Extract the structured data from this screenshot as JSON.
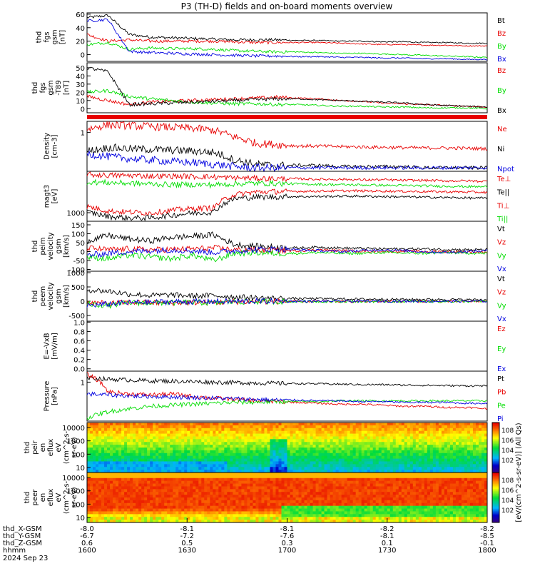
{
  "title": "P3 (TH-D) fields and on-board moments overview",
  "colors": {
    "black": "#000000",
    "red": "#e80000",
    "green": "#00dd00",
    "blue": "#0000e0"
  },
  "chart_data": [
    {
      "type": "line",
      "id": "fgs",
      "ylabel": [
        "thd",
        "fgs",
        "gsm",
        "[nT]"
      ],
      "ylim": [
        -10,
        62
      ],
      "yticks": [
        "60",
        "40",
        "20",
        "0"
      ],
      "series": [
        {
          "name": "Bt",
          "color": "black",
          "values": [
            55,
            58,
            30,
            26,
            25,
            24,
            23,
            22,
            22,
            22,
            21,
            21,
            20,
            20,
            19,
            19,
            18,
            18,
            17,
            17
          ]
        },
        {
          "name": "Bz",
          "color": "red",
          "values": [
            30,
            20,
            22,
            20,
            20,
            20,
            20,
            19,
            18,
            18,
            18,
            18,
            17,
            16,
            15,
            15,
            14,
            14,
            13,
            13
          ]
        },
        {
          "name": "By",
          "color": "green",
          "values": [
            15,
            18,
            8,
            10,
            9,
            9,
            8,
            6,
            5,
            4,
            4,
            3,
            2,
            2,
            1,
            0,
            -1,
            -2,
            -3,
            -4
          ]
        },
        {
          "name": "Bx",
          "color": "blue",
          "values": [
            50,
            52,
            5,
            3,
            2,
            1,
            0,
            -1,
            -2,
            -2,
            -3,
            -3,
            -4,
            -4,
            -5,
            -5,
            -6,
            -6,
            -7,
            -7
          ]
        }
      ]
    },
    {
      "type": "line",
      "id": "fgs-t89",
      "ylabel": [
        "thd",
        "fgs",
        "gsm",
        "-T89",
        "[nT]"
      ],
      "ylim": [
        -5,
        56
      ],
      "yticks": [
        "50",
        "40",
        "30",
        "20",
        "10",
        "0"
      ],
      "series": [
        {
          "name": "Bz",
          "color": "red",
          "values": [
            15,
            10,
            5,
            8,
            9,
            10,
            11,
            12,
            13,
            14,
            13,
            12,
            10,
            9,
            7,
            6,
            5,
            4,
            3,
            2
          ]
        },
        {
          "name": "By",
          "color": "green",
          "values": [
            20,
            22,
            15,
            12,
            10,
            8,
            7,
            6,
            6,
            5,
            5,
            4,
            3,
            3,
            2,
            2,
            1,
            1,
            1,
            0
          ]
        },
        {
          "name": "Bx",
          "color": "black",
          "values": [
            50,
            45,
            5,
            6,
            7,
            8,
            9,
            10,
            11,
            12,
            12,
            11,
            10,
            9,
            8,
            7,
            5,
            4,
            3,
            2
          ]
        }
      ]
    },
    {
      "type": "line",
      "id": "density",
      "ylabel": [
        "Density",
        "[cm-3]"
      ],
      "yscale": "log",
      "yticks": [
        "1"
      ],
      "series": [
        {
          "name": "Ne",
          "color": "red",
          "values": [
            1.5,
            2.0,
            1.9,
            1.8,
            1.7,
            1.6,
            1.4,
            0.9,
            0.6,
            0.55,
            0.5,
            0.5,
            0.48,
            0.47,
            0.46,
            0.45,
            0.44,
            0.44,
            0.43,
            0.42
          ]
        },
        {
          "name": "Ni",
          "color": "black",
          "values": [
            0.35,
            0.45,
            0.42,
            0.4,
            0.38,
            0.36,
            0.33,
            0.2,
            0.15,
            0.14,
            0.14,
            0.14,
            0.13,
            0.13,
            0.13,
            0.13,
            0.12,
            0.12,
            0.12,
            0.12
          ]
        },
        {
          "name": "Npot",
          "color": "blue",
          "values": [
            0.3,
            0.25,
            0.22,
            0.2,
            0.18,
            0.17,
            0.15,
            0.13,
            0.12,
            0.12,
            0.12,
            0.12,
            0.12,
            0.12,
            0.12,
            0.12,
            0.12,
            0.12,
            0.12,
            0.12
          ]
        }
      ]
    },
    {
      "type": "line",
      "id": "temperature",
      "ylabel": [
        "magt3",
        "[eV]"
      ],
      "yscale": "log",
      "yticks": [
        "1000"
      ],
      "series": [
        {
          "name": "Te⊥",
          "color": "red",
          "values": [
            2200,
            1600,
            1500,
            1400,
            1700,
            1900,
            2000,
            5000,
            6000,
            6200,
            6300,
            6400,
            6500,
            6500,
            6400,
            6300,
            6200,
            6100,
            6000,
            5900
          ]
        },
        {
          "name": "Te||",
          "color": "black",
          "values": [
            1500,
            1100,
            1000,
            1000,
            1200,
            1400,
            1500,
            3800,
            4200,
            4300,
            4400,
            4400,
            4500,
            4500,
            4400,
            4300,
            4200,
            4100,
            4000,
            3900
          ]
        },
        {
          "name": "Ti⊥",
          "color": "red",
          "values": [
            20000,
            19000,
            19000,
            18000,
            18000,
            17500,
            17000,
            16000,
            15500,
            15000,
            15000,
            14500,
            14500,
            14000,
            14000,
            13500,
            13500,
            13000,
            13000,
            12500
          ]
        },
        {
          "name": "Ti||",
          "color": "green",
          "values": [
            12000,
            11500,
            11000,
            10500,
            10000,
            10000,
            9800,
            10500,
            11000,
            10800,
            10500,
            10200,
            10000,
            9800,
            9600,
            9400,
            9200,
            9000,
            8800,
            8600
          ]
        }
      ]
    },
    {
      "type": "line",
      "id": "peim-velocity",
      "ylabel": [
        "thd",
        "peim",
        "velocity",
        "gsm",
        "[km/s]"
      ],
      "ylim": [
        -110,
        170
      ],
      "yticks": [
        "150",
        "100",
        "50",
        "0",
        "-50",
        "-100"
      ],
      "series": [
        {
          "name": "Vt",
          "color": "black",
          "values": [
            60,
            90,
            70,
            60,
            80,
            85,
            95,
            40,
            30,
            25,
            20,
            25,
            20,
            18,
            15,
            15,
            15,
            12,
            10,
            10
          ]
        },
        {
          "name": "Vz",
          "color": "red",
          "values": [
            20,
            10,
            15,
            10,
            12,
            15,
            20,
            10,
            8,
            5,
            5,
            10,
            5,
            3,
            2,
            2,
            0,
            0,
            -2,
            -2
          ]
        },
        {
          "name": "Vy",
          "color": "green",
          "values": [
            -30,
            -40,
            -20,
            -30,
            -40,
            -20,
            -50,
            -10,
            -5,
            -10,
            -10,
            -5,
            -10,
            -10,
            -5,
            -8,
            -10,
            -5,
            -8,
            -10
          ]
        },
        {
          "name": "Vx",
          "color": "blue",
          "values": [
            -20,
            -10,
            0,
            5,
            10,
            5,
            -5,
            5,
            10,
            15,
            10,
            5,
            0,
            5,
            10,
            5,
            0,
            -5,
            0,
            5
          ]
        }
      ]
    },
    {
      "type": "line",
      "id": "peem-velocity",
      "ylabel": [
        "thd",
        "peem",
        "velocity",
        "gsm",
        "[km/s]"
      ],
      "ylim": [
        -700,
        1050
      ],
      "yticks": [
        "1000",
        "500",
        "0",
        "-500"
      ],
      "series": [
        {
          "name": "Vt",
          "color": "black",
          "values": [
            400,
            350,
            250,
            200,
            220,
            180,
            200,
            150,
            120,
            100,
            90,
            90,
            80,
            70,
            70,
            60,
            60,
            60,
            50,
            50
          ]
        },
        {
          "name": "Vz",
          "color": "red",
          "values": [
            -50,
            -80,
            -40,
            -50,
            -60,
            -40,
            -50,
            -20,
            -20,
            -10,
            -10,
            -10,
            -10,
            -5,
            -5,
            -5,
            -5,
            -5,
            -5,
            -5
          ]
        },
        {
          "name": "Vy",
          "color": "green",
          "values": [
            -100,
            -150,
            -50,
            -60,
            -50,
            -40,
            -60,
            -20,
            -20,
            -10,
            -10,
            -10,
            -10,
            -10,
            -10,
            -10,
            -10,
            -10,
            -10,
            -10
          ]
        },
        {
          "name": "Vx",
          "color": "blue",
          "values": [
            -150,
            -100,
            -50,
            -30,
            -20,
            -20,
            -10,
            -10,
            0,
            0,
            0,
            0,
            0,
            0,
            0,
            0,
            0,
            0,
            0,
            0
          ]
        }
      ]
    },
    {
      "type": "line",
      "id": "efield",
      "ylabel": [
        "E=-VxB",
        "[mV/m]"
      ],
      "ylim": [
        -0.05,
        1.02
      ],
      "yticks": [
        "1.0",
        "0.8",
        "0.6",
        "0.4",
        "0.2",
        "0.0"
      ],
      "series": [
        {
          "name": "Ez",
          "color": "red",
          "values": []
        },
        {
          "name": "Ey",
          "color": "green",
          "values": []
        },
        {
          "name": "Ex",
          "color": "blue",
          "values": []
        }
      ]
    },
    {
      "type": "line",
      "id": "pressure",
      "ylabel": [
        "Pressure",
        "[nPa]"
      ],
      "yscale": "log",
      "yticks": [
        "1"
      ],
      "series": [
        {
          "name": "Pt",
          "color": "black",
          "values": [
            1.0,
            0.9,
            0.85,
            0.8,
            0.78,
            0.75,
            0.72,
            0.7,
            0.68,
            0.66,
            0.65,
            0.64,
            0.62,
            0.6,
            0.6,
            0.58,
            0.57,
            0.56,
            0.55,
            0.55
          ]
        },
        {
          "name": "Pb",
          "color": "red",
          "values": [
            1.3,
            0.35,
            0.3,
            0.28,
            0.3,
            0.25,
            0.22,
            0.2,
            0.18,
            0.17,
            0.16,
            0.15,
            0.14,
            0.14,
            0.13,
            0.12,
            0.12,
            0.11,
            0.11,
            0.1
          ]
        },
        {
          "name": "Pe",
          "color": "green",
          "values": [
            0.05,
            0.08,
            0.1,
            0.12,
            0.13,
            0.14,
            0.15,
            0.16,
            0.16,
            0.17,
            0.17,
            0.17,
            0.18,
            0.18,
            0.18,
            0.18,
            0.18,
            0.18,
            0.18,
            0.18
          ]
        },
        {
          "name": "Pi",
          "color": "blue",
          "values": [
            0.3,
            0.28,
            0.26,
            0.25,
            0.24,
            0.23,
            0.22,
            0.21,
            0.2,
            0.19,
            0.19,
            0.18,
            0.18,
            0.17,
            0.17,
            0.16,
            0.16,
            0.16,
            0.15,
            0.15
          ]
        }
      ]
    },
    {
      "type": "heatmap",
      "id": "peir-spectrogram",
      "ylabel": [
        "thd",
        "peir",
        "en",
        "eflux",
        "eV",
        "(cm^2-s-",
        "sr-eV)"
      ],
      "yscale": "log",
      "yticks": [
        "10000",
        "1000",
        "100",
        "10"
      ]
    },
    {
      "type": "heatmap",
      "id": "peer-spectrogram",
      "ylabel": [
        "thd",
        "peer",
        "en",
        "eflux",
        "eV",
        "(cm^2-s-",
        "sr-eV)"
      ],
      "yscale": "log",
      "yticks": [
        "10000",
        "1000",
        "100",
        "10"
      ]
    }
  ],
  "colorbar": {
    "labels_top": [
      "10^8",
      "10^6",
      "10^4",
      "10^2"
    ],
    "labels_bottom": [
      "10^8",
      "10^6",
      "10^4",
      "10^2"
    ],
    "units": "[eV/(cm^2-s-sr-eV)] (All Qs)"
  },
  "x_axis": {
    "ticks": [
      "1600",
      "1630",
      "1700",
      "1730",
      "1800"
    ],
    "rows": [
      {
        "label": "thd_X-GSM",
        "values": [
          "-8.0",
          "-8.1",
          "-8.1",
          "-8.2",
          "-8.2"
        ]
      },
      {
        "label": "thd_Y-GSM",
        "values": [
          "-6.7",
          "-7.2",
          "-7.6",
          "-8.1",
          "-8.5"
        ]
      },
      {
        "label": "thd_Z-GSM",
        "values": [
          "0.6",
          "0.5",
          "0.3",
          "0.1",
          "-0.1"
        ]
      },
      {
        "label": "hhmm",
        "values": [
          "1600",
          "1630",
          "1700",
          "1730",
          "1800"
        ]
      }
    ],
    "date": "2024 Sep 23"
  }
}
